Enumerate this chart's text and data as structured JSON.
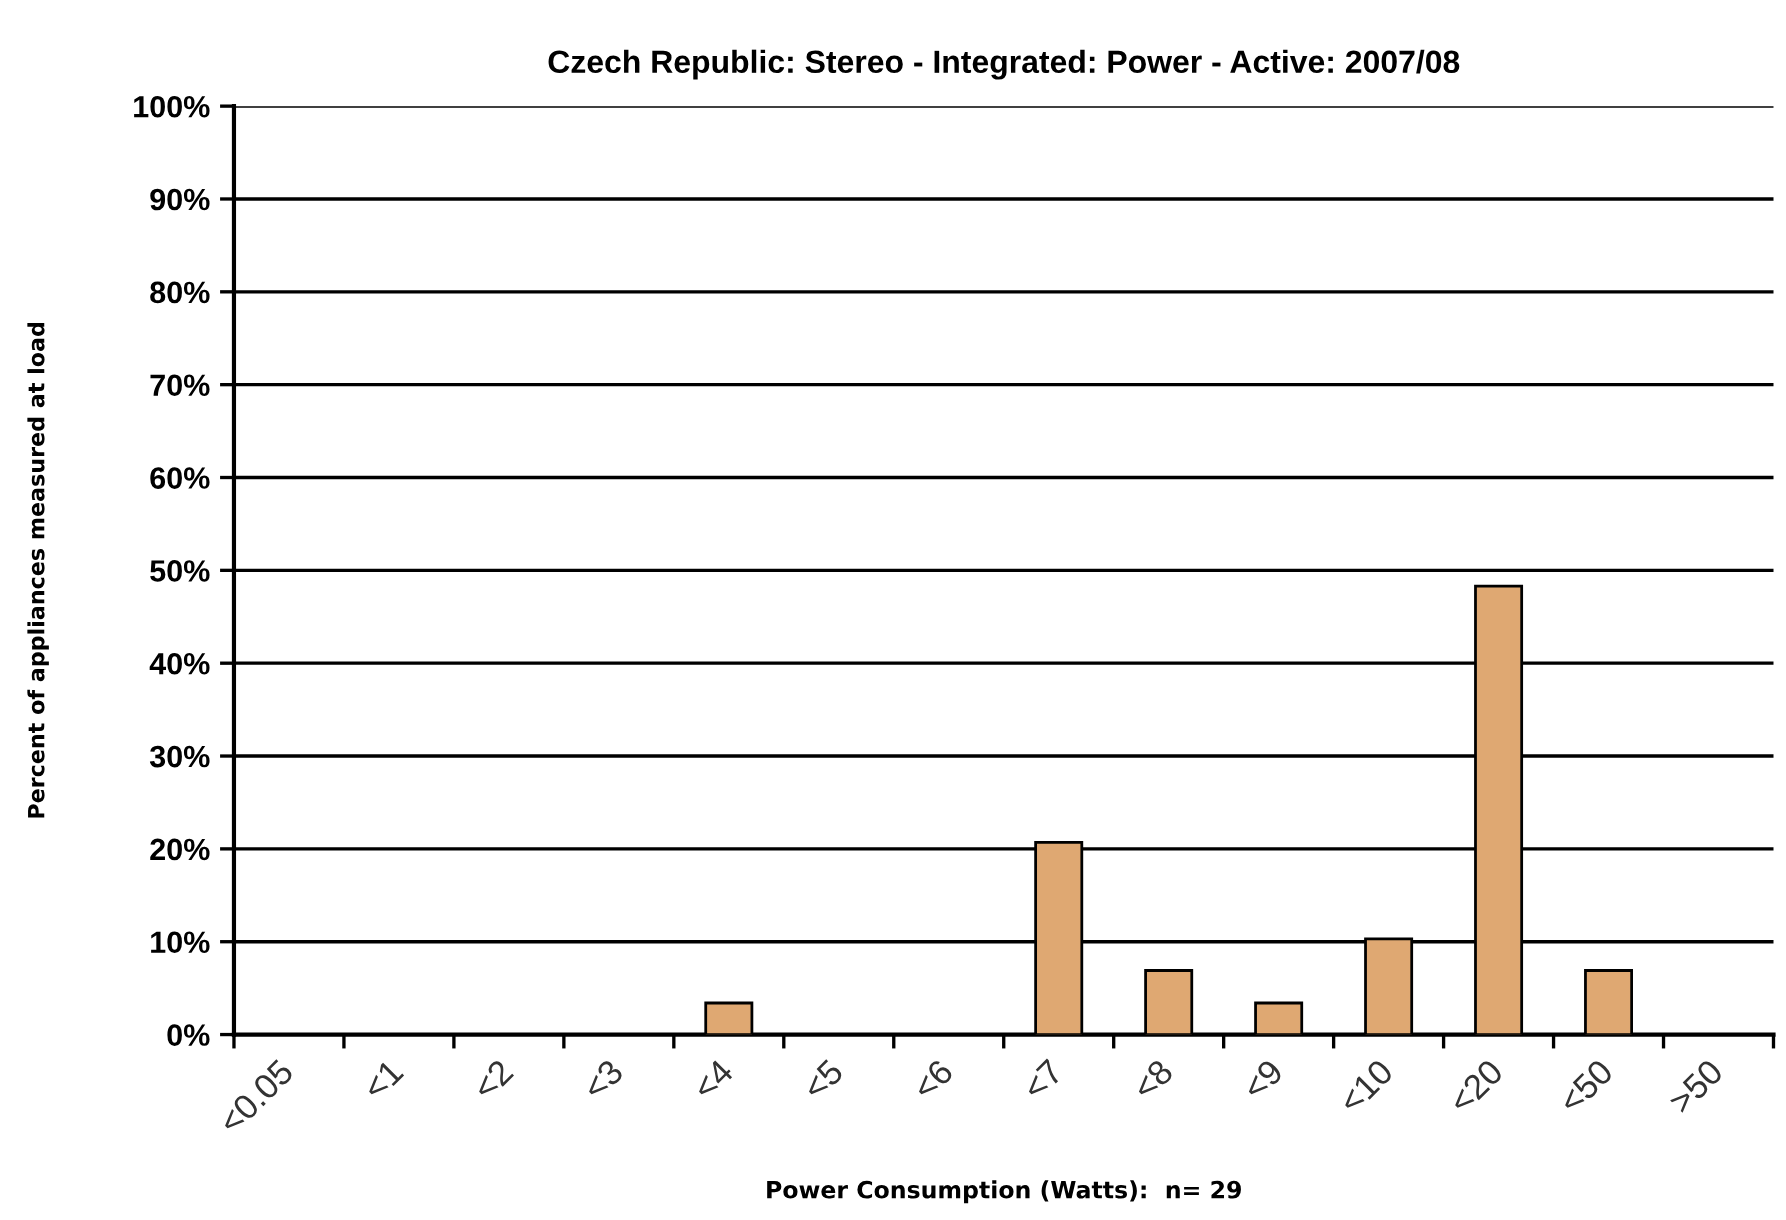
{
  "chart_data": {
    "type": "bar",
    "title": "Czech Republic: Stereo - Integrated: Power - Active: 2007/08",
    "xlabel": "Power Consumption (Watts):  n= 29",
    "ylabel": "Percent of appliances measured at load",
    "categories": [
      "<0.05",
      "<1",
      "<2",
      "<3",
      "<4",
      "<5",
      "<6",
      "<7",
      "<8",
      "<9",
      "<10",
      "<20",
      "<50",
      ">50"
    ],
    "values": [
      0,
      0,
      0,
      0,
      3.4,
      0,
      0,
      20.7,
      6.9,
      3.4,
      10.3,
      48.3,
      6.9,
      0
    ],
    "color": "#dfa872",
    "ylim": [
      0,
      100
    ],
    "yticks": [
      {
        "value": 0,
        "label": "0%"
      },
      {
        "value": 10,
        "label": "10%"
      },
      {
        "value": 20,
        "label": "20%"
      },
      {
        "value": 30,
        "label": "30%"
      },
      {
        "value": 40,
        "label": "40%"
      },
      {
        "value": 50,
        "label": "50%"
      },
      {
        "value": 60,
        "label": "60%"
      },
      {
        "value": 70,
        "label": "70%"
      },
      {
        "value": 80,
        "label": "80%"
      },
      {
        "value": 90,
        "label": "90%"
      },
      {
        "value": 100,
        "label": "100%"
      }
    ],
    "grid": "y"
  }
}
